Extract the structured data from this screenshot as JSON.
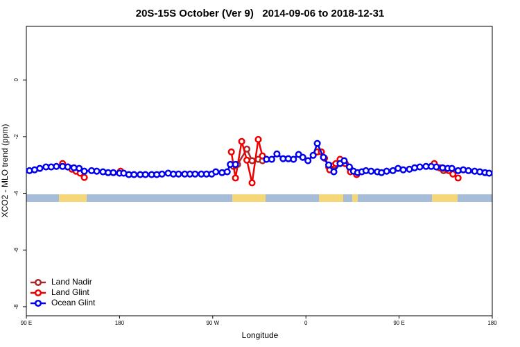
{
  "chart_data": {
    "type": "line",
    "title": "20S-15S October (Ver 9)   2014-09-06 to 2018-12-31",
    "x_label": "Longitude",
    "y_label": "XCO2 - MLO trend (ppm)",
    "xlim": [
      90,
      540
    ],
    "xticks": [
      {
        "value": 90,
        "label": "90 E"
      },
      180,
      {
        "value": 270,
        "label": "90 W"
      },
      {
        "value": 360,
        "label": "0"
      },
      {
        "value": 450,
        "label": "90 E"
      },
      {
        "value": 540,
        "label": "180"
      }
    ],
    "ylim": [
      -8.32,
      1.89
    ],
    "yticks": [
      0,
      -2,
      -4,
      -6,
      -8
    ],
    "legend": "bottom-left",
    "series": [
      {
        "name": "Land Nadir",
        "color": "#a52a2a",
        "x": [
          134,
          138,
          142,
          null,
          290,
          294,
          303,
          308,
          314,
          318,
          null,
          382,
          387,
          393,
          398,
          403,
          null,
          493,
          498
        ],
        "values": [
          -3.12,
          -3.17,
          -3.27,
          null,
          -3.05,
          -2.98,
          -2.44,
          -2.85,
          -2.8,
          -2.85,
          null,
          -3.07,
          -3.02,
          -2.85,
          -2.95,
          -3.15,
          null,
          -3.2,
          -3.15
        ]
      },
      {
        "name": "Land Glint",
        "color": "#ee0000",
        "x": [
          125,
          130,
          134,
          138,
          142,
          146,
          null,
          181,
          null,
          288,
          292,
          298,
          303,
          308,
          314,
          318,
          null,
          371,
          375,
          378,
          383,
          389,
          393,
          398,
          403,
          409,
          null,
          484,
          489,
          493,
          498,
          502,
          507
        ],
        "values": [
          -2.95,
          -3.07,
          -3.15,
          -3.22,
          -3.29,
          -3.44,
          null,
          -3.22,
          null,
          -2.54,
          -3.46,
          -2.17,
          -2.83,
          -3.63,
          -2.1,
          -2.68,
          null,
          -2.54,
          -2.54,
          -2.76,
          -3.17,
          -2.95,
          -2.8,
          -2.95,
          -3.24,
          -3.34,
          null,
          -2.95,
          -3.1,
          -3.12,
          -3.2,
          -3.32,
          -3.46
        ]
      },
      {
        "name": "Ocean Glint",
        "color": "#0000ee",
        "x": [
          93,
          98,
          103,
          109,
          114,
          119,
          125,
          130,
          136,
          141,
          146,
          153,
          158,
          164,
          169,
          174,
          180,
          184,
          189,
          194,
          200,
          205,
          211,
          216,
          221,
          227,
          232,
          237,
          243,
          248,
          253,
          259,
          264,
          269,
          273,
          279,
          284,
          287,
          292,
          null,
          322,
          327,
          332,
          338,
          343,
          348,
          353,
          357,
          362,
          367,
          371,
          377,
          382,
          387,
          393,
          397,
          402,
          406,
          410,
          414,
          418,
          423,
          429,
          433,
          438,
          444,
          449,
          454,
          460,
          465,
          470,
          476,
          481,
          486,
          492,
          497,
          501,
          507,
          512,
          517,
          523,
          528,
          533,
          537
        ],
        "values": [
          -3.2,
          -3.17,
          -3.12,
          -3.07,
          -3.07,
          -3.05,
          -3.05,
          -3.07,
          -3.1,
          -3.12,
          -3.22,
          -3.2,
          -3.22,
          -3.24,
          -3.27,
          -3.27,
          -3.29,
          -3.29,
          -3.34,
          -3.34,
          -3.34,
          -3.34,
          -3.34,
          -3.34,
          -3.32,
          -3.29,
          -3.32,
          -3.32,
          -3.32,
          -3.32,
          -3.32,
          -3.32,
          -3.32,
          -3.32,
          -3.24,
          -3.27,
          -3.24,
          -2.98,
          -2.98,
          null,
          -2.8,
          -2.8,
          -2.61,
          -2.78,
          -2.78,
          -2.8,
          -2.63,
          -2.73,
          -2.85,
          -2.66,
          -2.24,
          -2.73,
          -3.0,
          -3.24,
          -2.95,
          -2.85,
          -3.07,
          -3.22,
          -3.27,
          -3.24,
          -3.2,
          -3.22,
          -3.24,
          -3.27,
          -3.22,
          -3.2,
          -3.12,
          -3.17,
          -3.15,
          -3.1,
          -3.07,
          -3.05,
          -3.05,
          -3.07,
          -3.1,
          -3.12,
          -3.12,
          -3.2,
          -3.17,
          -3.2,
          -3.22,
          -3.24,
          -3.27,
          -3.29
        ]
      }
    ]
  }
}
